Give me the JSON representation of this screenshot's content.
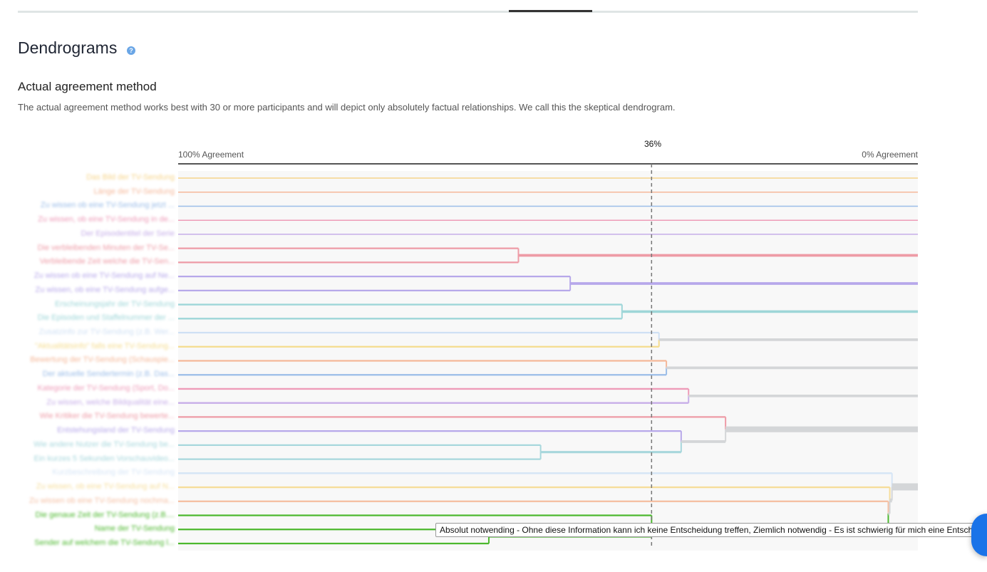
{
  "page": {
    "title": "Dendrograms",
    "help_icon": "question-circle-icon"
  },
  "section": {
    "title": "Actual agreement method",
    "description": "The actual agreement method works best with 30 or more participants and will depict only absolutely factual relationships. We call this the skeptical dendrogram."
  },
  "chart_data": {
    "type": "dendrogram",
    "axis_left_label": "100% Agreement",
    "axis_right_label": "0% Agreement",
    "xlim": [
      100,
      0
    ],
    "cutoff_label": "36%",
    "cutoff": 36,
    "leaves": [
      {
        "label": "Das Bild der TV-Sendung",
        "color": "#f6d48a"
      },
      {
        "label": "Länge der TV-Sendung",
        "color": "#f5b89a"
      },
      {
        "label": "Zu wissen ob eine TV-Sendung jetzt ...",
        "color": "#9bbde8"
      },
      {
        "label": "Zu wissen, ob eine TV-Sendung in de...",
        "color": "#ee9bb8"
      },
      {
        "label": "Der Episodentitel der Serie",
        "color": "#c6aee8"
      },
      {
        "label": "Die verbleibenden Minuten der TV-Se...",
        "color": "#ee9ba6"
      },
      {
        "label": "Verbleibende Zeit welche die TV-Sen...",
        "color": "#ee9ba6"
      },
      {
        "label": "Zu wissen ob eine TV-Sendung auf Ne...",
        "color": "#b7a8ea"
      },
      {
        "label": "Zu wissen, ob eine TV-Sendung aufge...",
        "color": "#b7a8ea"
      },
      {
        "label": "Erscheinungsjahr der TV-Sendung",
        "color": "#9ed6d8"
      },
      {
        "label": "Die Episoden und Staffelnummer der ...",
        "color": "#9ed6d8"
      },
      {
        "label": "Zusatzinfo zur TV-Sendung (z.B. Wer...",
        "color": "#cfe0f4"
      },
      {
        "label": "\"Aktualitätsinfo\" falls eine TV-Sendung...",
        "color": "#f5dc8e"
      },
      {
        "label": "Bewertung der TV-Sendung (Schauspie...",
        "color": "#f5b899"
      },
      {
        "label": "Der aktuelle Sendertermin (z.B. Das...",
        "color": "#9bbde8"
      },
      {
        "label": "Kategorie der TV-Sendung (Sport, Do...",
        "color": "#ee9bb8"
      },
      {
        "label": "Zu wissen, welche Bildqualität eine...",
        "color": "#c7aee8"
      },
      {
        "label": "Wie Kritiker die TV-Sendung bewerte...",
        "color": "#ee9ba6"
      },
      {
        "label": "Entstehungsland der TV-Sendung",
        "color": "#b7a8ea"
      },
      {
        "label": "Wie andere Nutzer die TV-Sendung be...",
        "color": "#a7d7dc"
      },
      {
        "label": "Ein kurzes 5 Sekunden Vorschauvideo...",
        "color": "#a7d7dc"
      },
      {
        "label": "Kurzbeschreibung der TV-Sendung",
        "color": "#d5e5f6"
      },
      {
        "label": "Zu wissen, ob eine TV-Sendung auf N...",
        "color": "#f6dd9a"
      },
      {
        "label": "Zu wissen ob eine TV-Sendung nochma...",
        "color": "#f5c0a4"
      },
      {
        "label": "Die genaue Zeit der TV-Sendung (z.B....",
        "color": "#4cb82e"
      },
      {
        "label": "Name der TV-Sendung",
        "color": "#4cb82e"
      },
      {
        "label": "Sender auf welchem die TV-Sendung l...",
        "color": "#4cb82e"
      }
    ],
    "merges": [
      [
        5,
        6,
        54
      ],
      [
        7,
        8,
        47
      ],
      [
        9,
        10,
        40
      ],
      [
        11,
        12,
        35
      ],
      [
        13,
        14,
        34
      ],
      [
        15,
        16,
        31
      ],
      [
        19,
        20,
        51
      ],
      [
        18,
        33,
        32
      ],
      [
        17,
        34,
        26
      ],
      [
        25,
        26,
        58
      ],
      [
        24,
        36,
        36
      ],
      [
        23,
        37,
        4
      ],
      [
        22,
        38,
        3.8
      ],
      [
        21,
        39,
        3.5
      ]
    ],
    "below_cutoff_color": "#d4d6d8"
  },
  "tooltip": {
    "text": "Absolut notwending - Ohne diese Information kann ich keine Entscheidung treffen, Ziemlich notwendig - Es ist schwierig für mich eine Entscheidung zu treffen"
  },
  "chat_button": {
    "icon": "chat-icon"
  }
}
